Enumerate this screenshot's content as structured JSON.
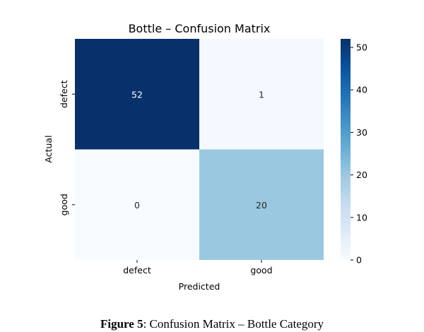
{
  "chart_data": {
    "type": "heatmap",
    "title": "Bottle – Confusion Matrix",
    "xlabel": "Predicted",
    "ylabel": "Actual",
    "x_categories": [
      "defect",
      "good"
    ],
    "y_categories": [
      "defect",
      "good"
    ],
    "values": [
      [
        52,
        1
      ],
      [
        0,
        20
      ]
    ],
    "colormap": "Blues",
    "colorbar": {
      "min": 0,
      "max": 52,
      "ticks": [
        0,
        10,
        20,
        30,
        40,
        50
      ]
    },
    "colors": {
      "low": "#f7fbff",
      "mid": "#9ecae1",
      "high": "#08306b",
      "light_text": "#ffffff",
      "dark_text": "#262626"
    }
  },
  "caption": {
    "label": "Figure 5",
    "text": ": Confusion Matrix – Bottle Category"
  }
}
